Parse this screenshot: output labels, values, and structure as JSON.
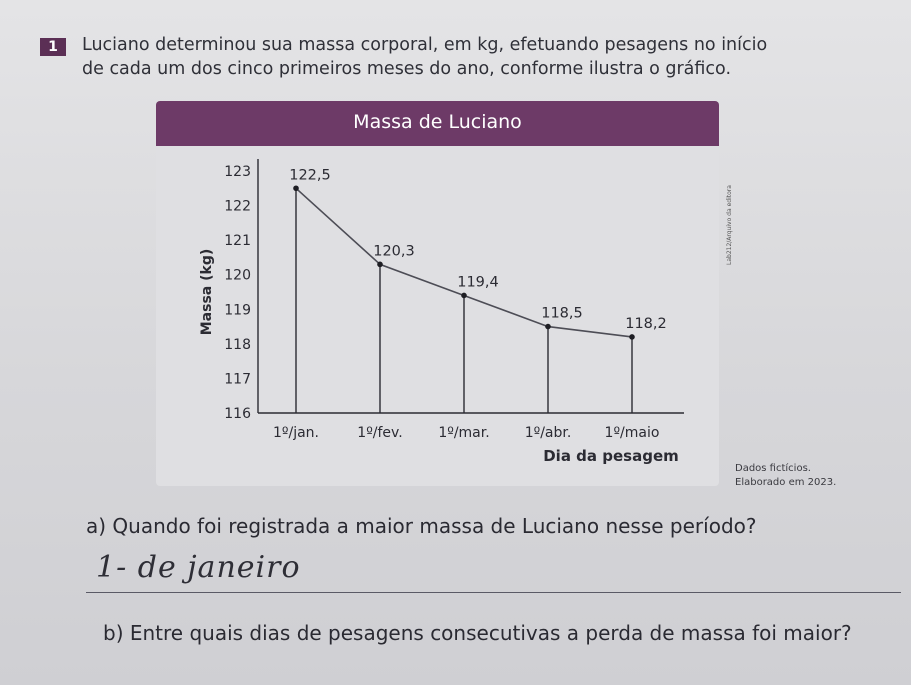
{
  "question": {
    "number": "1",
    "intro_line1": "Luciano determinou sua massa corporal, em kg, efetuando pesagens no início",
    "intro_line2": "de cada um dos cinco primeiros meses do ano, conforme ilustra o gráfico."
  },
  "chart_data": {
    "type": "line",
    "title": "Massa de Luciano",
    "xlabel": "Dia da pesagem",
    "ylabel": "Massa (kg)",
    "categories": [
      "1º/jan.",
      "1º/fev.",
      "1º/mar.",
      "1º/abr.",
      "1º/maio"
    ],
    "values": [
      122.5,
      120.3,
      119.4,
      118.5,
      118.2
    ],
    "data_labels": [
      "122,5",
      "120,3",
      "119,4",
      "118,5",
      "118,2"
    ],
    "y_ticks": [
      "116",
      "117",
      "118",
      "119",
      "120",
      "121",
      "122",
      "123"
    ],
    "ylim": [
      116,
      123
    ],
    "grid": false,
    "header_color": "#6d3a67"
  },
  "credit": "Lab212/Arquivo da editora",
  "source": {
    "line1": "Dados fictícios.",
    "line2": "Elaborado em 2023."
  },
  "sub_a": "a) Quando foi registrada a maior massa de Luciano nesse período?",
  "answer_a": "1- de janeiro",
  "sub_b": "b) Entre quais dias de pesagens consecutivas a perda de massa foi maior?"
}
